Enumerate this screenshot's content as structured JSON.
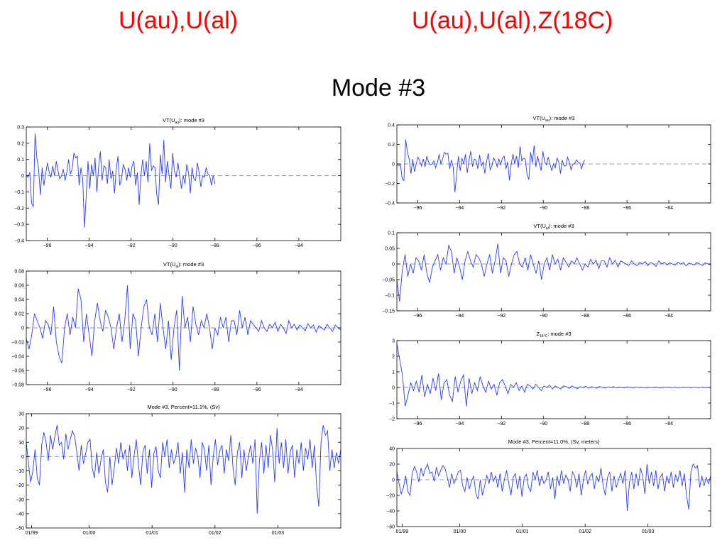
{
  "headings": {
    "left": "U(au),U(al)",
    "right": "U(au),U(al),Z(18C)",
    "center": "Mode #3"
  },
  "colors": {
    "series": "#2a3cff",
    "zero_line": "#9a9a9a",
    "axis": "#000000",
    "heading": "#ff0000"
  },
  "chart_data": [
    {
      "id": "L1",
      "type": "line",
      "title": {
        "pre": "VT(U",
        "sub": "au",
        "post": "): mode #3"
      },
      "xlim": [
        -97,
        -82
      ],
      "ylim": [
        -0.4,
        0.3
      ],
      "xticks": [
        -96,
        -94,
        -92,
        -90,
        -88,
        -86,
        -84
      ],
      "xtick_labels": [
        "−96",
        "−94",
        "−92",
        "−90",
        "−88",
        "−86",
        "−84"
      ],
      "yticks": [
        -0.4,
        -0.3,
        -0.2,
        -0.1,
        0,
        0.1,
        0.2,
        0.3
      ],
      "ytick_labels": [
        "−0.4",
        "−0.3",
        "−0.2",
        "−0.1",
        "0",
        "0.1",
        "0.2",
        "0.3"
      ],
      "zero_line": true,
      "x_start": -97,
      "x_end": -88,
      "y": [
        0.0,
        -0.01,
        0.02,
        -0.17,
        -0.19,
        0.26,
        0.11,
        0.04,
        -0.12,
        0.05,
        -0.06,
        0.01,
        0.08,
        0.02,
        -0.01,
        0.06,
        0.0,
        0.09,
        0.03,
        -0.02,
        0.0,
        0.04,
        -0.03,
        0.02,
        0.1,
        0.01,
        0.04,
        0.14,
        0.11,
        0.12,
        -0.06,
        0.05,
        -0.02,
        -0.32,
        -0.12,
        0.09,
        -0.08,
        0.07,
        0.0,
        0.11,
        -0.1,
        0.05,
        0.15,
        -0.03,
        0.06,
        0.05,
        -0.05,
        0.1,
        -0.02,
        0.03,
        -0.11,
        0.04,
        0.12,
        -0.06,
        -0.02,
        0.07,
        0.04,
        -0.03,
        0.05,
        -0.01,
        0.06,
        0.09,
        -0.06,
        0.02,
        -0.18,
        0.0,
        0.1,
        0.0,
        0.09,
        -0.04,
        0.2,
        0.03,
        0.06,
        0.05,
        -0.12,
        -0.18,
        0.13,
        0.01,
        0.22,
        -0.04,
        0.09,
        0.0,
        -0.08,
        0.14,
        0.03,
        -0.01,
        0.08,
        0.0,
        -0.08,
        0.0,
        -0.05,
        0.07,
        0.02,
        -0.11,
        0.05,
        -0.02,
        -0.03,
        0.08,
        0.02,
        -0.07,
        0.0,
        -0.01,
        0.05,
        0.01,
        0.0,
        -0.06,
        0.0,
        -0.05
      ]
    },
    {
      "id": "L2",
      "type": "line",
      "title": {
        "pre": "VT(U",
        "sub": "al",
        "post": "): mode #3"
      },
      "xlim": [
        -97,
        -82
      ],
      "ylim": [
        -0.08,
        0.08
      ],
      "xticks": [
        -96,
        -94,
        -92,
        -90,
        -88,
        -86,
        -84
      ],
      "xtick_labels": [
        "−96",
        "−94",
        "−92",
        "−90",
        "−88",
        "−86",
        "−84"
      ],
      "yticks": [
        -0.08,
        -0.06,
        -0.04,
        -0.02,
        0,
        0.02,
        0.04,
        0.06,
        0.08
      ],
      "ytick_labels": [
        "−0.08",
        "−0.06",
        "−0.04",
        "−0.02",
        "0",
        "0.02",
        "0.04",
        "0.06",
        "0.08"
      ],
      "zero_line": true,
      "x_start": -97,
      "x_end": -82,
      "y": [
        -0.015,
        -0.03,
        -0.01,
        0.02,
        0.01,
        0.0,
        -0.015,
        0.01,
        0.005,
        -0.01,
        0.03,
        -0.02,
        -0.04,
        -0.05,
        0.0,
        0.02,
        -0.01,
        0.015,
        0.0,
        0.055,
        0.04,
        -0.02,
        0.02,
        -0.01,
        -0.04,
        0.01,
        0.035,
        0.01,
        -0.005,
        0.025,
        0.015,
        0.0,
        -0.03,
        0.0,
        0.02,
        -0.02,
        0.01,
        0.06,
        -0.03,
        0.02,
        0.01,
        -0.04,
        0.0,
        0.03,
        0.04,
        0.0,
        -0.01,
        0.02,
        -0.02,
        0.035,
        0.0,
        -0.03,
        0.01,
        -0.045,
        0.0,
        0.025,
        -0.06,
        0.045,
        0.0,
        0.015,
        -0.02,
        0.03,
        0.005,
        -0.01,
        0.01,
        0.0,
        0.02,
        0.0,
        -0.03,
        0.0,
        -0.01,
        0.015,
        0.0,
        0.015,
        -0.02,
        0.01,
        0.01,
        -0.01,
        0.025,
        0.0,
        0.015,
        -0.01,
        0.01,
        0.005,
        0.0,
        -0.005,
        0.01,
        0.0,
        -0.005,
        0.005,
        0.0,
        0.008,
        -0.005,
        0.005,
        0.0,
        -0.008,
        0.01,
        0.0,
        0.005,
        -0.003,
        0.004,
        0.0,
        -0.004,
        0.006,
        0.0,
        0.004,
        -0.006,
        0.003,
        0.0,
        -0.003,
        0.005,
        0.0,
        -0.005,
        0.004,
        0.0,
        -0.003
      ]
    },
    {
      "id": "L3",
      "type": "line",
      "title": {
        "pre": "Mode #3, Percent=11.1%, (Sv)",
        "sub": "",
        "post": ""
      },
      "xlim": [
        0,
        60
      ],
      "ylim": [
        -50,
        30
      ],
      "xticks": [
        1,
        12,
        24,
        36,
        48
      ],
      "xtick_labels": [
        "01/99",
        "01/00",
        "01/01",
        "01/02",
        "01/03"
      ],
      "yticks": [
        -50,
        -40,
        -30,
        -20,
        -10,
        0,
        10,
        20,
        30
      ],
      "ytick_labels": [
        "−50",
        "−40",
        "−30",
        "−20",
        "−10",
        "0",
        "10",
        "20",
        "30"
      ],
      "zero_line": true,
      "x_start": 0,
      "x_end": 60,
      "y": [
        10,
        -5,
        -18,
        -10,
        5,
        -15,
        -20,
        8,
        17,
        10,
        -3,
        15,
        5,
        14,
        22,
        8,
        10,
        -2,
        16,
        5,
        12,
        18,
        14,
        3,
        -10,
        8,
        -5,
        2,
        10,
        12,
        -8,
        -15,
        3,
        -12,
        -2,
        5,
        -18,
        -25,
        0,
        -20,
        -8,
        6,
        -5,
        10,
        -2,
        5,
        -10,
        8,
        -15,
        0,
        12,
        -5,
        -20,
        3,
        8,
        -12,
        5,
        -22,
        2,
        7,
        -10,
        -15,
        10,
        0,
        12,
        -8,
        5,
        -5,
        0,
        10,
        -12,
        3,
        -25,
        5,
        -8,
        12,
        -5,
        6,
        0,
        -15,
        10,
        5,
        -10,
        8,
        -20,
        0,
        12,
        -6,
        4,
        8,
        -12,
        5,
        -3,
        15,
        -8,
        -20,
        3,
        10,
        -15,
        5,
        -10,
        0,
        8,
        -5,
        12,
        -40,
        -3,
        10,
        -12,
        8,
        -8,
        15,
        5,
        -18,
        20,
        -5,
        10,
        -8,
        12,
        -12,
        3,
        8,
        -15,
        5,
        -5,
        10,
        -10,
        6,
        -2,
        12,
        -8,
        8,
        -20,
        -35,
        10,
        22,
        15,
        18,
        -10,
        5,
        -8,
        3,
        -5,
        5
      ]
    },
    {
      "id": "R1",
      "type": "line",
      "title": {
        "pre": "VT(U",
        "sub": "au",
        "post": "): mode #3"
      },
      "xlim": [
        -97,
        -82
      ],
      "ylim": [
        -0.4,
        0.4
      ],
      "xticks": [
        -96,
        -94,
        -92,
        -90,
        -88,
        -86,
        -84
      ],
      "xtick_labels": [
        "−96",
        "−94",
        "−92",
        "−90",
        "−88",
        "−86",
        "−84"
      ],
      "yticks": [
        -0.4,
        -0.2,
        0,
        0.2,
        0.4
      ],
      "ytick_labels": [
        "−0.4",
        "−0.2",
        "0",
        "0.2",
        "0.4"
      ],
      "zero_line": true,
      "x_start": -97,
      "x_end": -88,
      "y": [
        0.0,
        -0.02,
        0.0,
        -0.15,
        -0.17,
        0.25,
        0.12,
        0.05,
        -0.1,
        0.05,
        -0.08,
        0.0,
        0.07,
        0.03,
        -0.02,
        0.05,
        -0.03,
        0.08,
        0.02,
        -0.01,
        0.0,
        0.03,
        -0.04,
        0.01,
        0.1,
        0.0,
        0.05,
        0.12,
        0.1,
        0.11,
        -0.05,
        0.04,
        -0.03,
        -0.29,
        -0.1,
        0.08,
        -0.07,
        0.06,
        0.0,
        0.1,
        -0.09,
        0.04,
        0.13,
        -0.03,
        0.05,
        0.04,
        -0.05,
        0.09,
        -0.02,
        0.02,
        -0.1,
        0.03,
        0.11,
        -0.06,
        -0.02,
        0.06,
        0.03,
        -0.03,
        0.05,
        -0.01,
        0.06,
        0.08,
        -0.05,
        0.02,
        -0.17,
        0.0,
        0.1,
        0.0,
        0.08,
        -0.04,
        0.18,
        0.03,
        0.06,
        0.05,
        -0.11,
        -0.16,
        0.12,
        0.01,
        0.19,
        -0.03,
        0.08,
        0.0,
        -0.07,
        0.13,
        0.02,
        -0.01,
        0.07,
        0.0,
        -0.07,
        0.0,
        -0.04,
        0.06,
        0.02,
        -0.1,
        0.04,
        -0.02,
        -0.02,
        0.07,
        0.02,
        -0.06,
        0.0,
        0.0,
        0.04,
        0.02,
        0.01,
        -0.05,
        0.02,
        0.04
      ]
    },
    {
      "id": "R2",
      "type": "line",
      "title": {
        "pre": "VT(U",
        "sub": "al",
        "post": "): mode #3"
      },
      "xlim": [
        -97,
        -82
      ],
      "ylim": [
        -0.15,
        0.1
      ],
      "xticks": [
        -96,
        -94,
        -92,
        -90,
        -88,
        -86,
        -84
      ],
      "xtick_labels": [
        "−96",
        "−94",
        "−92",
        "−90",
        "−88",
        "−86",
        "−84"
      ],
      "yticks": [
        -0.15,
        -0.1,
        -0.05,
        0,
        0.05,
        0.1
      ],
      "ytick_labels": [
        "−0.15",
        "−0.1",
        "−0.05",
        "0",
        "0.05",
        "0.1"
      ],
      "zero_line": true,
      "x_start": -97,
      "x_end": -82,
      "y": [
        -0.05,
        -0.12,
        -0.02,
        0.03,
        -0.04,
        0.0,
        -0.03,
        0.02,
        0.01,
        -0.02,
        0.03,
        -0.03,
        -0.06,
        -0.01,
        0.01,
        0.03,
        -0.02,
        0.02,
        0.0,
        0.06,
        0.04,
        -0.03,
        0.02,
        -0.01,
        -0.05,
        0.01,
        0.04,
        0.01,
        -0.01,
        0.03,
        0.02,
        0.0,
        -0.04,
        0.0,
        0.03,
        -0.03,
        0.01,
        0.065,
        -0.03,
        0.02,
        0.01,
        -0.04,
        0.0,
        0.03,
        0.04,
        0.0,
        -0.01,
        0.02,
        -0.02,
        0.03,
        0.0,
        -0.03,
        0.01,
        -0.05,
        0.0,
        0.02,
        -0.02,
        0.03,
        0.0,
        0.015,
        -0.02,
        0.02,
        0.005,
        -0.01,
        0.01,
        0.0,
        0.02,
        0.0,
        -0.02,
        0.0,
        -0.01,
        0.015,
        0.0,
        0.012,
        -0.015,
        0.01,
        0.01,
        -0.01,
        0.02,
        0.0,
        0.012,
        -0.01,
        0.01,
        0.005,
        0.0,
        -0.005,
        0.01,
        0.0,
        -0.005,
        0.005,
        0.0,
        0.008,
        -0.005,
        0.005,
        0.0,
        -0.008,
        0.01,
        0.0,
        0.005,
        -0.003,
        0.004,
        0.0,
        -0.004,
        0.006,
        0.0,
        0.004,
        -0.006,
        0.003,
        0.0,
        -0.003,
        0.005,
        0.0,
        -0.005,
        0.004,
        0.0,
        -0.003
      ]
    },
    {
      "id": "R3",
      "type": "line",
      "title": {
        "pre": "Z",
        "sub": "18°C",
        "post": ": mode #3"
      },
      "xlim": [
        -97,
        -82
      ],
      "ylim": [
        -2,
        3
      ],
      "xticks": [
        -96,
        -94,
        -92,
        -90,
        -88,
        -86,
        -84
      ],
      "xtick_labels": [
        "−96",
        "−94",
        "−92",
        "−90",
        "−88",
        "−86",
        "−84"
      ],
      "yticks": [
        -2,
        -1,
        0,
        1,
        2,
        3
      ],
      "ytick_labels": [
        "−2",
        "−1",
        "0",
        "1",
        "2",
        "3"
      ],
      "zero_line": true,
      "x_start": -97,
      "x_end": -82,
      "y": [
        2.8,
        1.8,
        0.8,
        -1.2,
        -0.5,
        0.3,
        -0.2,
        0.4,
        -0.3,
        0.8,
        -0.6,
        0.2,
        -0.4,
        0.6,
        -0.2,
        0.9,
        -0.8,
        0.3,
        0.5,
        -0.5,
        -0.9,
        0.7,
        -0.3,
        0.4,
        0.8,
        -1.2,
        0.6,
        -0.4,
        0.3,
        -0.2,
        0.7,
        0.1,
        -0.3,
        0.4,
        -0.1,
        0.2,
        -0.5,
        0.3,
        0.5,
        0.1,
        -0.4,
        0.2,
        0.0,
        0.3,
        -0.2,
        0.1,
        -0.3,
        0.2,
        0.1,
        -0.1,
        0.2,
        0.0,
        -0.2,
        0.1,
        0.0,
        0.15,
        -0.1,
        0.1,
        0.0,
        -0.1,
        0.1,
        0.05,
        -0.05,
        0.1,
        0.0,
        -0.08,
        0.05,
        0.0,
        0.08,
        -0.05,
        0.05,
        0.0,
        -0.05,
        0.06,
        0.0,
        -0.04,
        0.04,
        0.0,
        0.05,
        -0.03,
        0.03,
        0.0,
        -0.03,
        0.04,
        0.0,
        -0.02,
        0.03,
        0.0,
        0.02,
        -0.03,
        0.02,
        0.0,
        -0.02,
        0.03,
        0.0,
        -0.02,
        0.02,
        0.0,
        0.02,
        -0.02,
        0.01,
        0.0,
        -0.01,
        0.02,
        0.0,
        0.01,
        -0.02,
        0.01,
        0.0,
        -0.01,
        0.02,
        0.0,
        0.01,
        -0.01
      ]
    },
    {
      "id": "R4",
      "type": "line",
      "title": {
        "pre": "Mode #3, Percent=11.0%, (Sv, meters)",
        "sub": "",
        "post": ""
      },
      "xlim": [
        0,
        60
      ],
      "ylim": [
        -60,
        40
      ],
      "xticks": [
        1,
        12,
        24,
        36,
        48
      ],
      "xtick_labels": [
        "01/99",
        "01/00",
        "01/01",
        "01/02",
        "01/03"
      ],
      "yticks": [
        -60,
        -40,
        -20,
        0,
        20,
        40
      ],
      "ytick_labels": [
        "−60",
        "−40",
        "−20",
        "0",
        "20",
        "40"
      ],
      "zero_line": true,
      "x_start": 0,
      "x_end": 60,
      "y": [
        10,
        -5,
        -18,
        -10,
        5,
        -15,
        -20,
        8,
        17,
        10,
        -3,
        15,
        5,
        14,
        20,
        8,
        10,
        -2,
        16,
        5,
        12,
        18,
        14,
        3,
        -10,
        8,
        -5,
        2,
        10,
        12,
        -8,
        -15,
        3,
        -12,
        -2,
        5,
        -18,
        -25,
        0,
        -20,
        -8,
        6,
        -5,
        10,
        -2,
        5,
        -10,
        8,
        -15,
        0,
        12,
        -5,
        -20,
        3,
        8,
        -12,
        5,
        -22,
        2,
        7,
        -10,
        -15,
        10,
        0,
        12,
        -8,
        5,
        -5,
        0,
        10,
        -12,
        3,
        -25,
        5,
        -8,
        12,
        -5,
        6,
        0,
        -15,
        10,
        5,
        -10,
        8,
        -20,
        0,
        12,
        -6,
        4,
        8,
        -12,
        5,
        -3,
        15,
        -8,
        -20,
        3,
        10,
        -15,
        5,
        -10,
        0,
        8,
        -5,
        12,
        -40,
        -3,
        10,
        -12,
        8,
        -8,
        15,
        5,
        -18,
        20,
        -5,
        10,
        -8,
        12,
        -12,
        3,
        8,
        -15,
        5,
        -5,
        10,
        -10,
        6,
        -2,
        12,
        -8,
        8,
        -20,
        -38,
        10,
        20,
        15,
        18,
        -10,
        5,
        -8,
        3,
        -5,
        5
      ]
    }
  ]
}
